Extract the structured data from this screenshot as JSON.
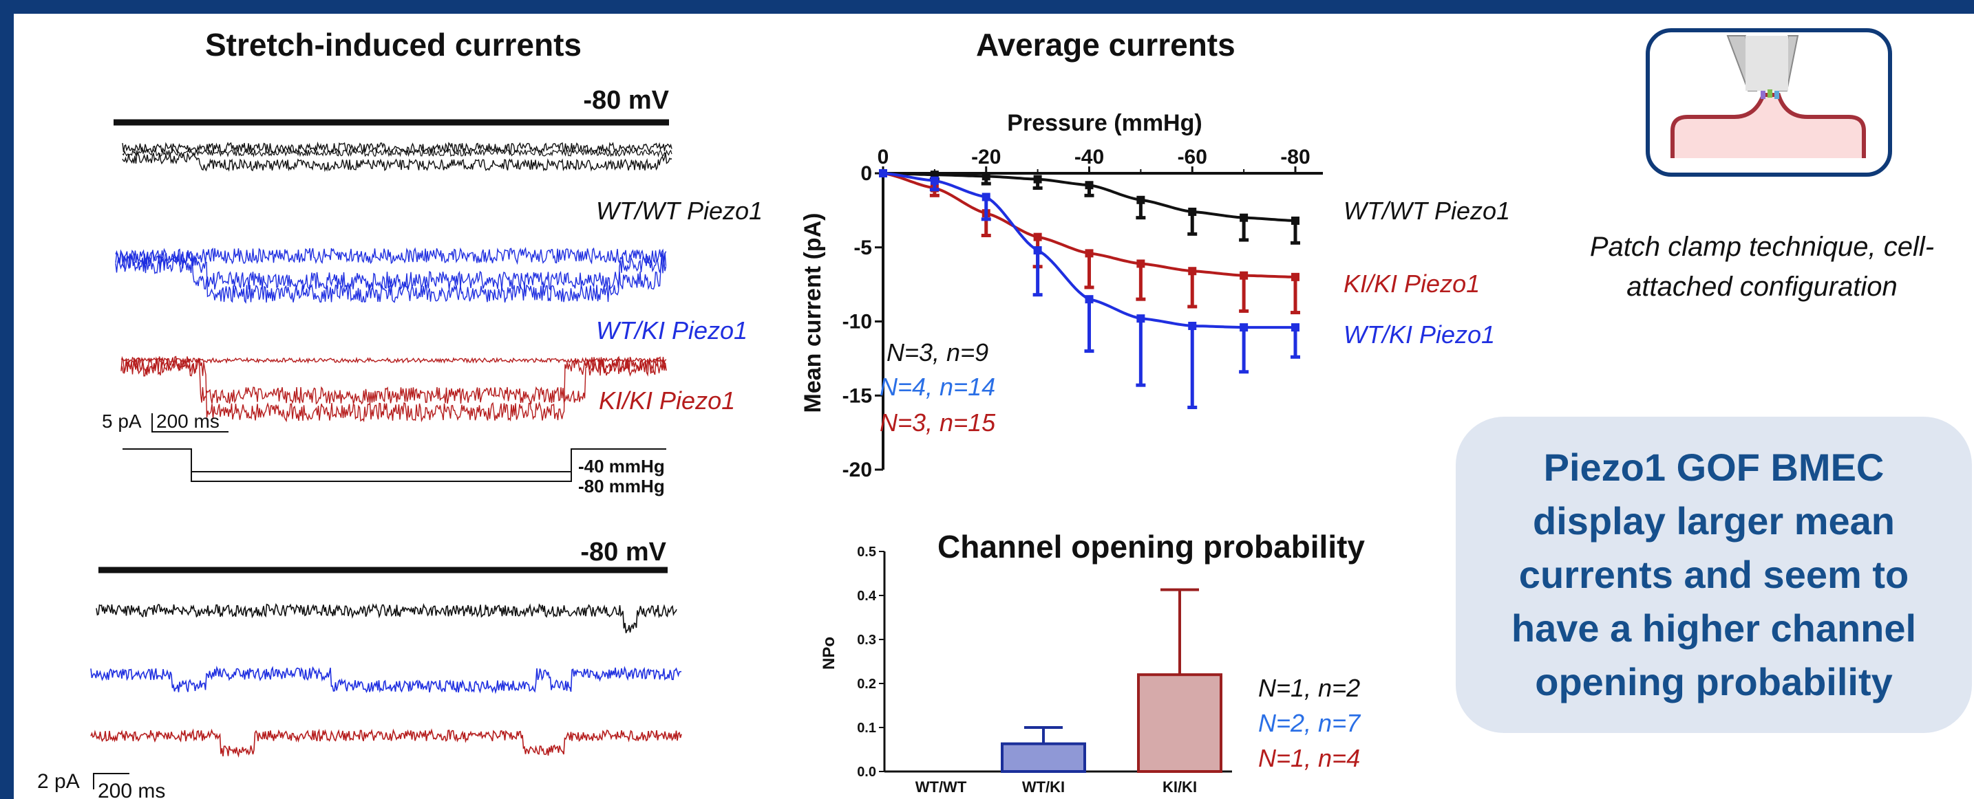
{
  "panels": {
    "stretch_title": "Stretch-induced currents",
    "average_title": "Average currents",
    "npo_title": "Channel opening probability"
  },
  "traces": {
    "holding_top": "-80 mV",
    "holding_bottom": "-80 mV",
    "wt_wt": "WT/WT Piezo1",
    "wt_ki": "WT/KI Piezo1",
    "ki_ki": "KI/KI Piezo1",
    "scale_top_amp": "5 pA",
    "scale_top_time": "200 ms",
    "scale_bottom_amp": "2 pA",
    "scale_bottom_time": "200 ms",
    "pressure_40": "-40 mmHg",
    "pressure_80": "-80 mmHg"
  },
  "setup": {
    "caption": "Patch clamp technique, cell-attached configuration"
  },
  "conclusion": {
    "text": "Piezo1 GOF BMEC display larger mean currents and seem to have a higher channel opening probability"
  },
  "colors": {
    "wt_wt": "#111111",
    "wt_ki": "#1f2fe0",
    "ki_ki": "#b51c1c",
    "frame": "#0f3a78",
    "conclusion_text": "#164f8c",
    "conclusion_bg": "#dfe6f1"
  },
  "chart_data": [
    {
      "type": "line",
      "title": "",
      "xlabel": "Pressure (mmHg)",
      "ylabel": "Mean current (pA)",
      "xlim": [
        0,
        -80
      ],
      "ylim": [
        -20,
        0
      ],
      "x_ticks": [
        0,
        -20,
        -40,
        -60,
        -80
      ],
      "y_ticks": [
        0,
        -5,
        -10,
        -15,
        -20
      ],
      "x": [
        0,
        -10,
        -20,
        -30,
        -40,
        -50,
        -60,
        -70,
        -80
      ],
      "series": [
        {
          "name": "WT/WT Piezo1",
          "values": [
            0,
            -0.1,
            -0.2,
            -0.4,
            -0.8,
            -1.8,
            -2.6,
            -3.0,
            -3.2
          ],
          "errors": [
            0,
            0.3,
            0.5,
            0.6,
            0.7,
            1.2,
            1.5,
            1.5,
            1.5
          ]
        },
        {
          "name": "KI/KI Piezo1",
          "values": [
            0,
            -1.0,
            -2.7,
            -4.3,
            -5.4,
            -6.1,
            -6.6,
            -6.9,
            -7.0
          ],
          "errors": [
            0,
            0.5,
            1.5,
            2.0,
            2.3,
            2.4,
            2.4,
            2.4,
            2.4
          ]
        },
        {
          "name": "WT/KI Piezo1",
          "values": [
            0,
            -0.5,
            -1.6,
            -5.2,
            -8.5,
            -9.8,
            -10.3,
            -10.4,
            -10.4
          ],
          "errors": [
            0,
            0.6,
            1.5,
            3.0,
            3.5,
            4.5,
            5.5,
            3.0,
            2.0
          ]
        }
      ],
      "annotations": [
        "N=3, n=9",
        "N=4, n=14",
        "N=3, n=15"
      ]
    },
    {
      "type": "bar",
      "title": "Channel opening probability",
      "xlabel": "",
      "ylabel": "NPo",
      "ylim": [
        0,
        0.5
      ],
      "y_ticks": [
        0.0,
        0.1,
        0.2,
        0.3,
        0.4,
        0.5
      ],
      "categories": [
        "WT/WT",
        "WT/KI",
        "KI/KI"
      ],
      "values": [
        0.0,
        0.063,
        0.22
      ],
      "errors": [
        0.0,
        0.037,
        0.193
      ],
      "annotations": [
        "N=1, n=2",
        "N=2, n=7",
        "N=1, n=4"
      ]
    }
  ]
}
